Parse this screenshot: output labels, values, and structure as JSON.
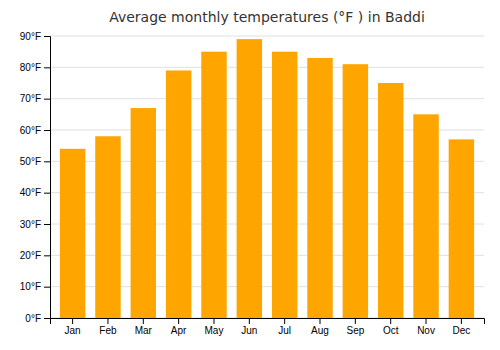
{
  "chart_data": {
    "type": "bar",
    "title": "Average monthly temperatures (°F ) in Baddi",
    "categories": [
      "Jan",
      "Feb",
      "Mar",
      "Apr",
      "May",
      "Jun",
      "Jul",
      "Aug",
      "Sep",
      "Oct",
      "Nov",
      "Dec"
    ],
    "values": [
      54,
      58,
      67,
      79,
      85,
      89,
      85,
      83,
      81,
      75,
      65,
      57
    ],
    "color": "#FFA500",
    "ylim": [
      0,
      90
    ],
    "yticks": [
      {
        "value": 0,
        "label": "0°F"
      },
      {
        "value": 10,
        "label": "10°F"
      },
      {
        "value": 20,
        "label": "20°F"
      },
      {
        "value": 30,
        "label": "30°F"
      },
      {
        "value": 40,
        "label": "40°F"
      },
      {
        "value": 50,
        "label": "50°F"
      },
      {
        "value": 60,
        "label": "60°F"
      },
      {
        "value": 70,
        "label": "70°F"
      },
      {
        "value": 80,
        "label": "80°F"
      },
      {
        "value": 90,
        "label": "90°F"
      }
    ],
    "grid": true
  }
}
